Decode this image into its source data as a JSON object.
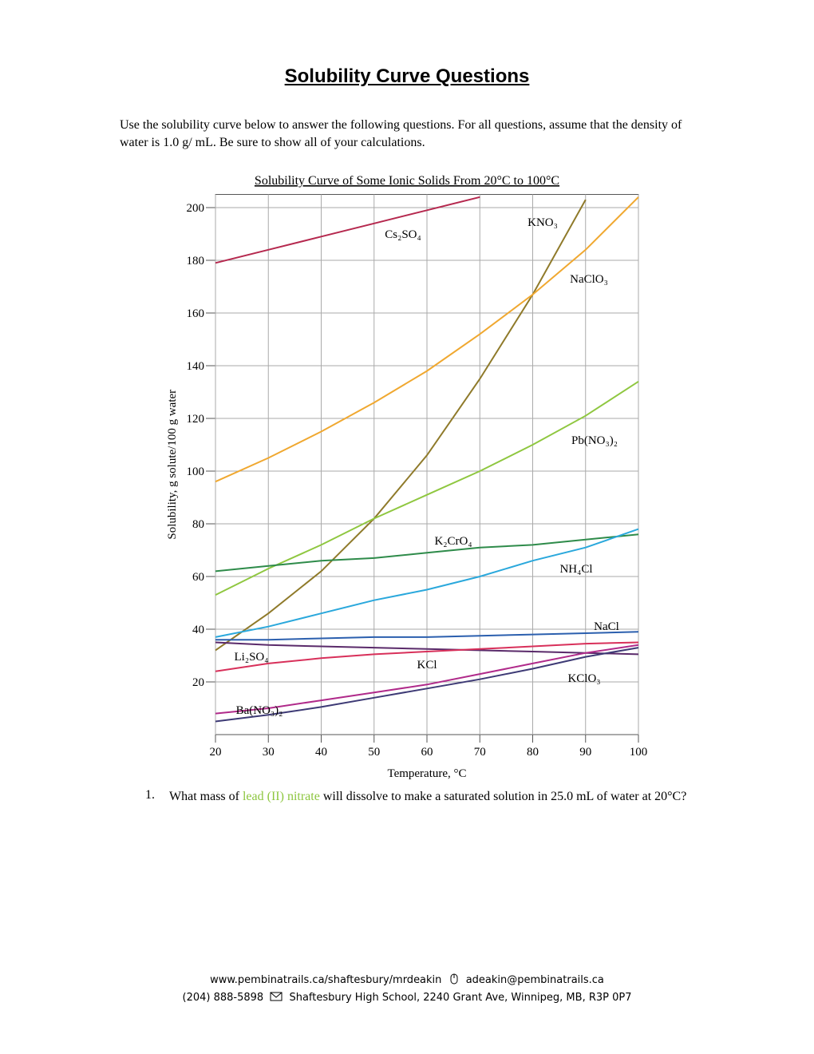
{
  "header": {
    "title": "Solubility Curve Questions"
  },
  "intro": "Use the solubility curve below to answer the following questions.  For all questions, assume that the density of water is 1.0 g/ mL.  Be sure to show all of your calculations.",
  "chart_data": {
    "type": "line",
    "title": "Solubility Curve of Some Ionic Solids From 20°C to 100°C",
    "x_label": "Temperature, °C",
    "y_label": "Solubility, g solute/100 g water",
    "x": [
      20,
      30,
      40,
      50,
      60,
      70,
      80,
      90,
      100
    ],
    "xlim": [
      20,
      100
    ],
    "xticks": [
      20,
      30,
      40,
      50,
      60,
      70,
      80,
      90,
      100
    ],
    "ylim": [
      0,
      205
    ],
    "yticks": [
      20,
      40,
      60,
      80,
      100,
      120,
      140,
      160,
      180,
      200
    ],
    "grid": true,
    "series": [
      {
        "name": "Cs₂SO₄",
        "color": "#b5284e",
        "values": [
          179,
          184,
          189,
          194,
          199,
          204,
          null,
          null,
          null
        ]
      },
      {
        "name": "KNO₃",
        "color": "#8f7a2a",
        "values": [
          32,
          46,
          62,
          82,
          106,
          135,
          167,
          203,
          null
        ]
      },
      {
        "name": "NaClO₃",
        "color": "#f0a830",
        "values": [
          96,
          105,
          115,
          126,
          138,
          152,
          167,
          184,
          204
        ]
      },
      {
        "name": "Pb(NO₃)₂",
        "color": "#8fc740",
        "values": [
          53,
          63,
          72,
          82,
          91,
          100,
          110,
          121,
          134
        ]
      },
      {
        "name": "K₂CrO₄",
        "color": "#2e8b4a",
        "values": [
          62,
          64,
          66,
          67,
          69,
          71,
          72,
          74,
          76
        ]
      },
      {
        "name": "NH₄Cl",
        "color": "#2aa8dc",
        "values": [
          37,
          41,
          46,
          51,
          55,
          60,
          66,
          71,
          78
        ]
      },
      {
        "name": "NaCl",
        "color": "#2b5fae",
        "values": [
          36,
          36,
          36.5,
          37,
          37,
          37.5,
          38,
          38.5,
          39
        ]
      },
      {
        "name": "Li₂SO₄",
        "color": "#5a2a6a",
        "values": [
          35,
          34,
          33.5,
          33,
          32.5,
          32,
          31.5,
          31,
          30.5
        ]
      },
      {
        "name": "KCl",
        "color": "#d8305a",
        "values": [
          24,
          27,
          29,
          30.5,
          31.5,
          32.5,
          33.5,
          34.5,
          35
        ]
      },
      {
        "name": "KClO₃",
        "color": "#3d3a75",
        "values": [
          5,
          7.5,
          10.5,
          14,
          17.5,
          21,
          25,
          29.5,
          33
        ]
      },
      {
        "name": "Ba(NO₃)₂",
        "color": "#b02a8a",
        "values": [
          8,
          10,
          13,
          16,
          19,
          23,
          27,
          31,
          34
        ]
      }
    ]
  },
  "questions": [
    {
      "number": "1.",
      "text_before": "What mass of ",
      "highlight": "lead (II) nitrate",
      "text_after": " will dissolve to make a saturated solution in 25.0 mL of water at 20°C?"
    }
  ],
  "footer": {
    "website": "www.pembinatrails.ca/shaftesbury/mrdeakin",
    "email": "adeakin@pembinatrails.ca",
    "phone": "(204) 888-5898",
    "address": "Shaftesbury High School, 2240 Grant Ave, Winnipeg, MB, R3P 0P7"
  }
}
